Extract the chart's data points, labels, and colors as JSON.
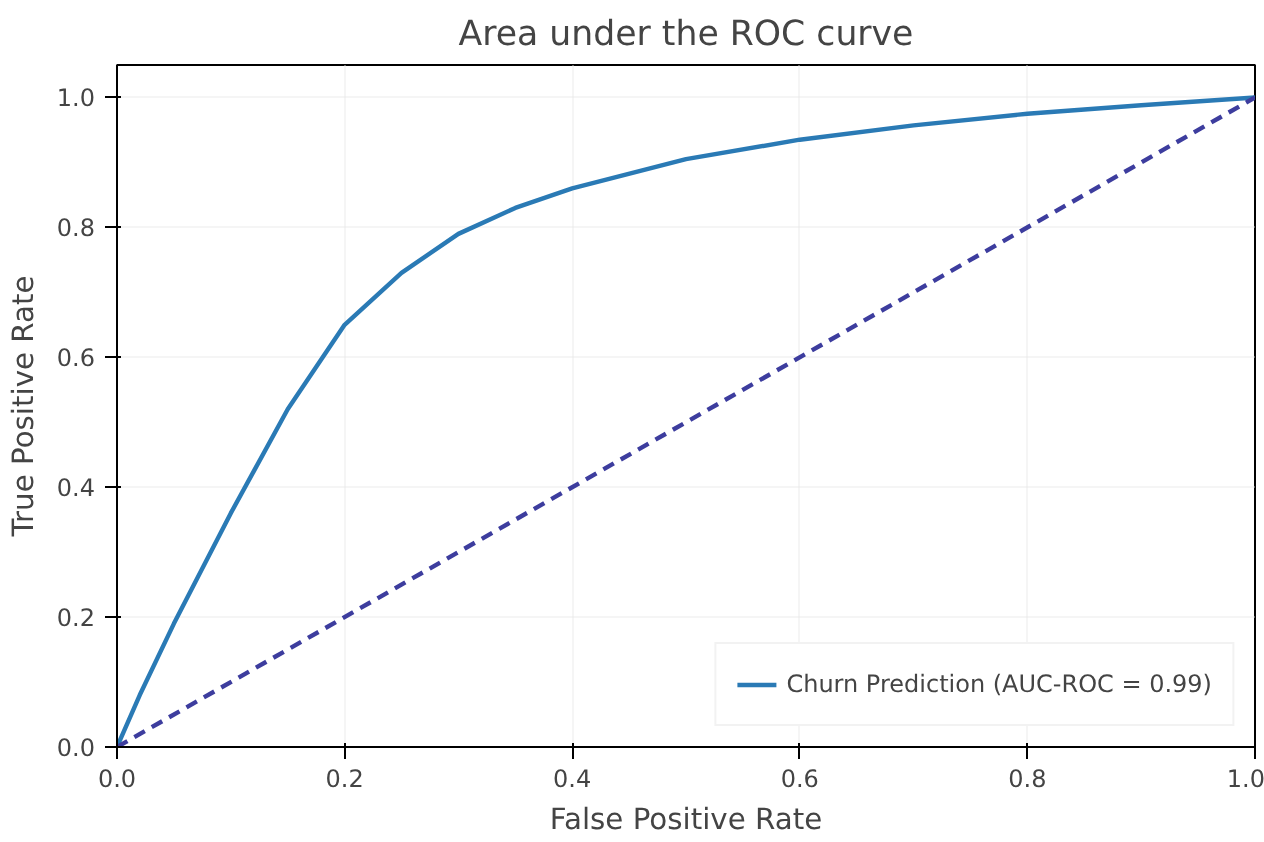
{
  "chart_data": {
    "type": "line",
    "title": "Area under the ROC curve",
    "xlabel": "False Positive Rate",
    "ylabel": "True Positive Rate",
    "xlim": [
      0,
      1
    ],
    "ylim": [
      0,
      1.05
    ],
    "xticks": [
      {
        "value": 0,
        "label": "0.0"
      },
      {
        "value": 0.2,
        "label": "0.2"
      },
      {
        "value": 0.4,
        "label": "0.4"
      },
      {
        "value": 0.6,
        "label": "0.6"
      },
      {
        "value": 0.8,
        "label": "0.8"
      },
      {
        "value": 1,
        "label": "1.0"
      }
    ],
    "yticks": [
      {
        "value": 0,
        "label": "0.0"
      },
      {
        "value": 0.2,
        "label": "0.2"
      },
      {
        "value": 0.4,
        "label": "0.4"
      },
      {
        "value": 0.6,
        "label": "0.6"
      },
      {
        "value": 0.8,
        "label": "0.8"
      },
      {
        "value": 1,
        "label": "1.0"
      }
    ],
    "grid": true,
    "legend": "bottom right",
    "series": [
      {
        "name": "Churn Prediction (AUC-ROC = 0.99)",
        "color": "#2a7ab5",
        "line_style": "solid",
        "x": [
          0,
          0.02,
          0.05,
          0.1,
          0.15,
          0.2,
          0.25,
          0.3,
          0.35,
          0.4,
          0.5,
          0.6,
          0.7,
          0.8,
          0.9,
          1.0
        ],
        "values": [
          0,
          0.08,
          0.19,
          0.36,
          0.52,
          0.65,
          0.73,
          0.79,
          0.83,
          0.86,
          0.905,
          0.935,
          0.957,
          0.975,
          0.988,
          1.0
        ]
      },
      {
        "color": "#3d3d9e",
        "line_style": "dashed",
        "x": [
          0,
          1
        ],
        "values": [
          0,
          1
        ]
      }
    ]
  }
}
